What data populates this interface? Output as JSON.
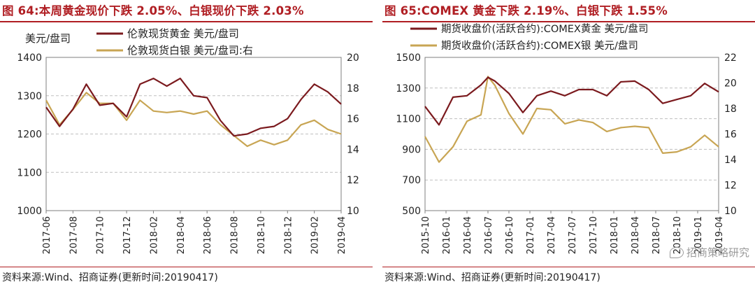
{
  "page": {
    "watermark": "招商策略研究",
    "watermark_icon": "wechat-icon"
  },
  "chart_data": [
    {
      "type": "line",
      "title": "图 64:本周黄金现价下跌 2.05%、白银现价下跌 2.03%",
      "source": "资料来源:Wind、招商证券(更新时间:20190417)",
      "ylabel_left": "美元/盘司",
      "ylim_left": [
        1000,
        1400
      ],
      "yticks_left": [
        1000,
        1100,
        1200,
        1300,
        1400
      ],
      "ylim_right": [
        10,
        20
      ],
      "yticks_right": [
        10,
        12,
        14,
        16,
        18,
        20
      ],
      "xlim": [
        "2017-06",
        "2019-04"
      ],
      "xticks": [
        "2017-06",
        "2017-08",
        "2017-10",
        "2017-12",
        "2018-02",
        "2018-04",
        "2018-06",
        "2018-08",
        "2018-10",
        "2018-12",
        "2019-02",
        "2019-04"
      ],
      "grid": true,
      "legend_position": "top-left",
      "series": [
        {
          "name": "伦敦现货黄金 美元/盘司",
          "axis": "left",
          "color": "#7b1a1e",
          "x": [
            "2017-06",
            "2017-07",
            "2017-08",
            "2017-09",
            "2017-10",
            "2017-11",
            "2017-12",
            "2018-01",
            "2018-02",
            "2018-03",
            "2018-04",
            "2018-05",
            "2018-06",
            "2018-07",
            "2018-08",
            "2018-09",
            "2018-10",
            "2018-11",
            "2018-12",
            "2019-01",
            "2019-02",
            "2019-03",
            "2019-04"
          ],
          "values": [
            1270,
            1220,
            1265,
            1330,
            1275,
            1280,
            1245,
            1330,
            1345,
            1325,
            1345,
            1300,
            1295,
            1235,
            1195,
            1200,
            1215,
            1220,
            1240,
            1290,
            1330,
            1310,
            1278
          ]
        },
        {
          "name": "伦敦现货白银 美元/盘司:右",
          "axis": "right",
          "color": "#c8a553",
          "x": [
            "2017-06",
            "2017-07",
            "2017-08",
            "2017-09",
            "2017-10",
            "2017-11",
            "2017-12",
            "2018-01",
            "2018-02",
            "2018-03",
            "2018-04",
            "2018-05",
            "2018-06",
            "2018-07",
            "2018-08",
            "2018-09",
            "2018-10",
            "2018-11",
            "2018-12",
            "2019-01",
            "2019-02",
            "2019-03",
            "2019-04"
          ],
          "values": [
            17.2,
            15.6,
            16.6,
            17.7,
            17.0,
            17.0,
            15.9,
            17.2,
            16.5,
            16.4,
            16.5,
            16.3,
            16.5,
            15.6,
            14.9,
            14.2,
            14.6,
            14.3,
            14.6,
            15.6,
            15.9,
            15.3,
            15.0
          ]
        }
      ]
    },
    {
      "type": "line",
      "title": "图 65:COMEX 黄金下跌 2.19%、白银下跌 1.55%",
      "source": "资料来源:Wind、招商证券(更新时间:20190417)",
      "ylim_left": [
        500,
        1500
      ],
      "yticks_left": [
        500,
        700,
        900,
        1100,
        1300,
        1500
      ],
      "ylim_right": [
        10,
        22
      ],
      "yticks_right": [
        10,
        12,
        14,
        16,
        18,
        20,
        22
      ],
      "xlim": [
        "2015-10",
        "2019-04"
      ],
      "xticks": [
        "2015-10",
        "2016-01",
        "2016-04",
        "2016-07",
        "2016-10",
        "2017-01",
        "2017-04",
        "2017-07",
        "2017-10",
        "2018-01",
        "2018-04",
        "2018-07",
        "2018-10",
        "2019-01",
        "2019-04"
      ],
      "grid": true,
      "legend_position": "top",
      "series": [
        {
          "name": "期货收盘价(活跃合约):COMEX黄金 美元/盘司",
          "axis": "left",
          "color": "#7b1a1e",
          "x": [
            "2015-10",
            "2015-12",
            "2016-02",
            "2016-04",
            "2016-06",
            "2016-07",
            "2016-08",
            "2016-10",
            "2016-12",
            "2017-02",
            "2017-04",
            "2017-06",
            "2017-08",
            "2017-10",
            "2017-12",
            "2018-02",
            "2018-04",
            "2018-06",
            "2018-08",
            "2018-10",
            "2018-12",
            "2019-02",
            "2019-04"
          ],
          "values": [
            1180,
            1060,
            1240,
            1250,
            1320,
            1370,
            1345,
            1265,
            1140,
            1250,
            1280,
            1250,
            1290,
            1290,
            1250,
            1340,
            1345,
            1290,
            1200,
            1225,
            1250,
            1330,
            1275
          ]
        },
        {
          "name": "期货收盘价(活跃合约):COMEX银 美元/盘司",
          "axis": "right",
          "color": "#c8a553",
          "x": [
            "2015-10",
            "2015-12",
            "2016-02",
            "2016-04",
            "2016-06",
            "2016-07",
            "2016-08",
            "2016-10",
            "2016-12",
            "2017-02",
            "2017-04",
            "2017-06",
            "2017-08",
            "2017-10",
            "2017-12",
            "2018-02",
            "2018-04",
            "2018-06",
            "2018-08",
            "2018-10",
            "2018-12",
            "2019-02",
            "2019-04"
          ],
          "values": [
            15.8,
            13.8,
            15.0,
            17.0,
            17.5,
            20.5,
            19.8,
            17.6,
            16.0,
            18.0,
            17.9,
            16.8,
            17.1,
            16.9,
            16.2,
            16.5,
            16.6,
            16.5,
            14.5,
            14.6,
            15.0,
            15.9,
            15.0
          ]
        }
      ]
    }
  ]
}
